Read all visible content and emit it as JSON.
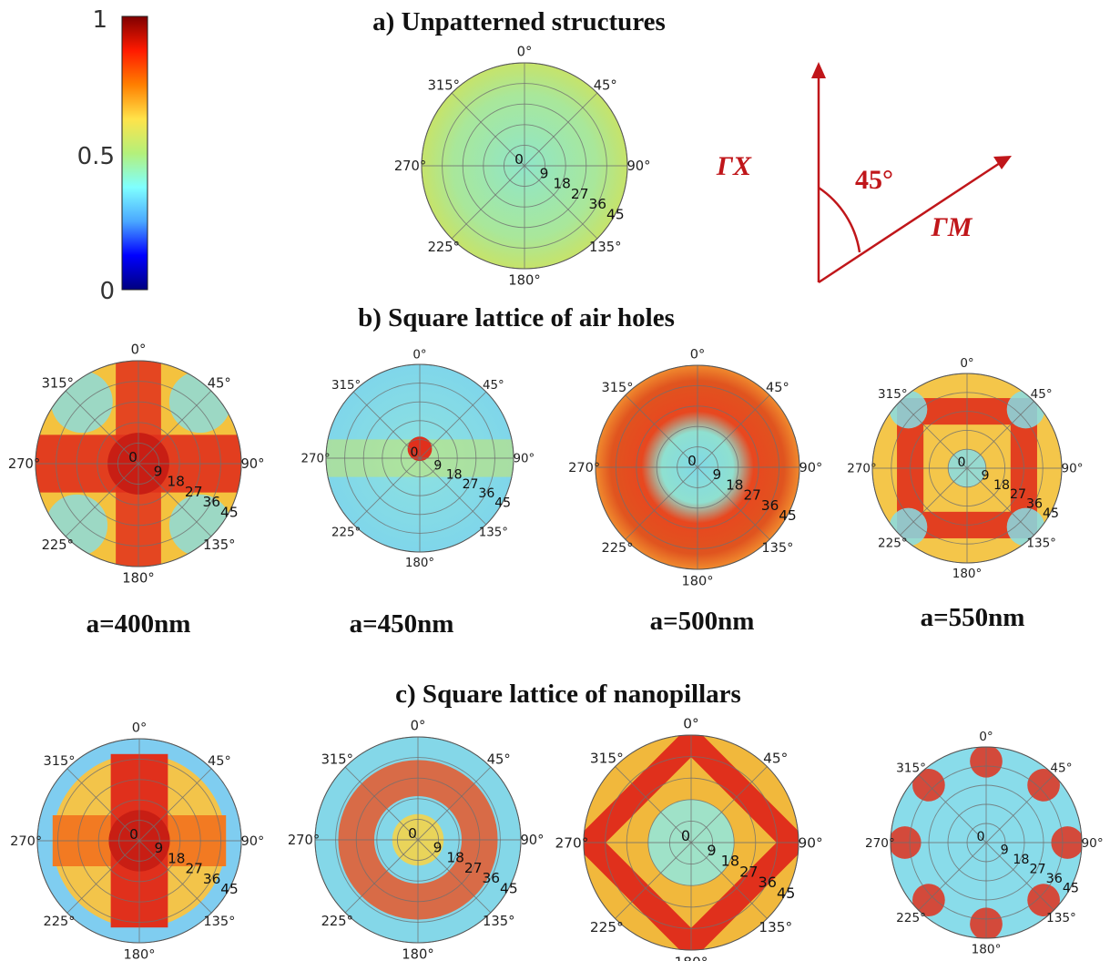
{
  "section_titles": {
    "a": "a) Unpatterned structures",
    "b": "b) Square lattice of air holes",
    "c": "c) Square lattice of nanopillars"
  },
  "colorbar": {
    "tick_labels": [
      "1",
      "0.5",
      "0"
    ],
    "colormap": [
      "#00007f",
      "#0000ff",
      "#4aa8ff",
      "#7fffff",
      "#b4f07a",
      "#ffe34a",
      "#ff7f00",
      "#ff1a00",
      "#7f0000"
    ]
  },
  "polar_axes": {
    "angle_labels": [
      "0°",
      "45°",
      "90°",
      "135°",
      "180°",
      "225°",
      "270°",
      "315°"
    ],
    "radial_labels": [
      "0",
      "9",
      "18",
      "27",
      "36",
      "45"
    ]
  },
  "lattice_labels": [
    "a=400nm",
    "a=450nm",
    "a=500nm",
    "a=550nm"
  ],
  "direction_diagram": {
    "gamma_x": "ΓX",
    "gamma_m": "ΓM",
    "angle": "45°",
    "color": "#c0161a"
  },
  "plot_fill_levels": {
    "unpatterned": "uniform ~0.55",
    "b_400": "red cross band",
    "b_450": "mostly cyan, small red center",
    "b_500": "red ring",
    "b_550": "red square frame",
    "c_400": "red cross / diamond",
    "c_450": "speckled red ring",
    "c_500": "red diamond",
    "c_550": "red spots at edge"
  }
}
